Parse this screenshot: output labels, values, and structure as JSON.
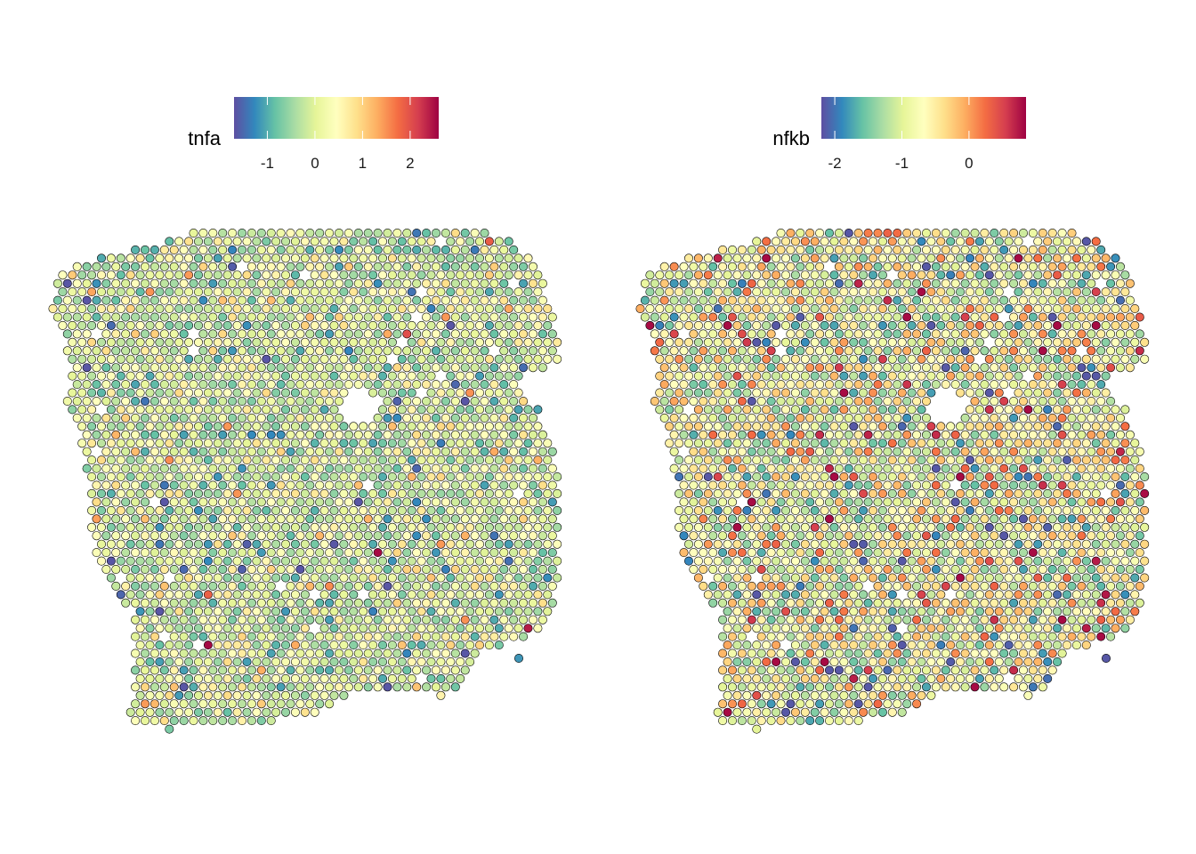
{
  "palette": [
    "#5E4FA2",
    "#3288BD",
    "#66C2A5",
    "#ABDDA4",
    "#E6F598",
    "#FFFFBF",
    "#FEE08B",
    "#FDAE61",
    "#F46D43",
    "#D53E4F",
    "#9E0142"
  ],
  "spot_outline": "#000000",
  "chart_data": [
    {
      "type": "scatter",
      "variable": "tnfa",
      "legend": {
        "title": "tnfa",
        "placement": "top",
        "limits": [
          -1.7,
          2.6
        ],
        "ticks": [
          -1,
          0,
          1,
          2
        ],
        "tick_labels": [
          "-1",
          "0",
          "1",
          "2"
        ]
      },
      "x": [],
      "y": [],
      "values": []
    },
    {
      "type": "scatter",
      "variable": "nfkb",
      "legend": {
        "title": "nfkb",
        "placement": "top",
        "limits": [
          -2.2,
          0.85
        ],
        "ticks": [
          -2,
          -1,
          0
        ],
        "tick_labels": [
          "-2",
          "-1",
          "0"
        ]
      },
      "x": [],
      "y": [],
      "values": []
    }
  ]
}
